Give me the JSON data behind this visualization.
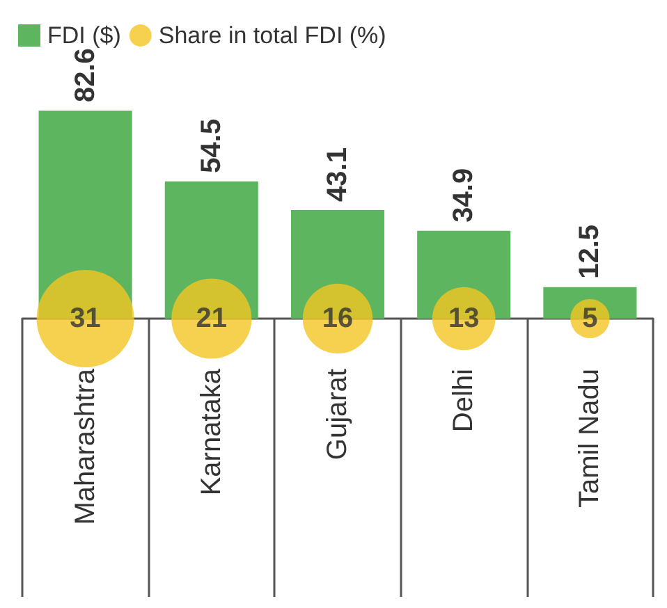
{
  "chart_data": {
    "type": "bar",
    "categories": [
      "Maharashtra",
      "Karnataka",
      "Gujarat",
      "Delhi",
      "Tamil Nadu"
    ],
    "data_labels": true,
    "legend": "top left",
    "grid": false,
    "series": [
      {
        "name": "FDI ($)",
        "color": "#5db55f",
        "values": [
          82.6,
          54.5,
          43.1,
          34.9,
          12.5
        ]
      },
      {
        "name": "Share in total FDI (%)",
        "type": "bubble",
        "color": "#f3c623",
        "values": [
          0,
          0,
          0,
          0,
          0
        ],
        "sizes": [
          31,
          21,
          16,
          13,
          5
        ],
        "value_labels": [
          "31",
          "21",
          "16",
          "13",
          "5"
        ]
      }
    ]
  }
}
